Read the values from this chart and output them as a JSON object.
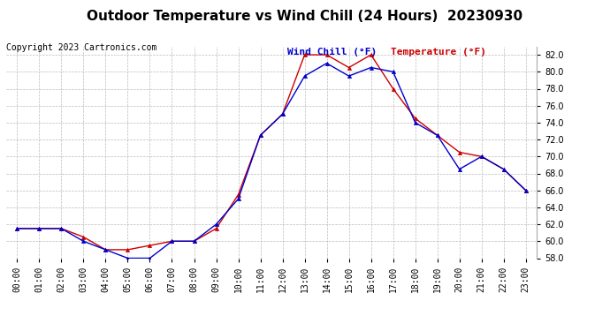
{
  "title": "Outdoor Temperature vs Wind Chill (24 Hours)  20230930",
  "copyright": "Copyright 2023 Cartronics.com",
  "legend_wind_chill": "Wind Chill (°F)",
  "legend_temperature": "Temperature (°F)",
  "hours": [
    "00:00",
    "01:00",
    "02:00",
    "03:00",
    "04:00",
    "05:00",
    "06:00",
    "07:00",
    "08:00",
    "09:00",
    "10:00",
    "11:00",
    "12:00",
    "13:00",
    "14:00",
    "15:00",
    "16:00",
    "17:00",
    "18:00",
    "19:00",
    "20:00",
    "21:00",
    "22:00",
    "23:00"
  ],
  "temperature": [
    61.5,
    61.5,
    61.5,
    60.5,
    59.0,
    59.0,
    59.5,
    60.0,
    60.0,
    61.5,
    65.5,
    72.5,
    75.0,
    82.0,
    82.0,
    80.5,
    82.0,
    78.0,
    74.5,
    72.5,
    70.5,
    70.0,
    68.5,
    66.0
  ],
  "wind_chill": [
    61.5,
    61.5,
    61.5,
    60.0,
    59.0,
    58.0,
    58.0,
    60.0,
    60.0,
    62.0,
    65.0,
    72.5,
    75.0,
    79.5,
    81.0,
    79.5,
    80.5,
    80.0,
    74.0,
    72.5,
    68.5,
    70.0,
    68.5,
    66.0
  ],
  "temp_color": "#cc0000",
  "wind_chill_color": "#0000cc",
  "ylim_min": 58.0,
  "ylim_max": 83.0,
  "ytick_step": 2.0,
  "bg_color": "#ffffff",
  "grid_color": "#bbbbbb",
  "title_fontsize": 11,
  "copyright_fontsize": 7,
  "legend_fontsize": 8,
  "tick_fontsize": 7
}
